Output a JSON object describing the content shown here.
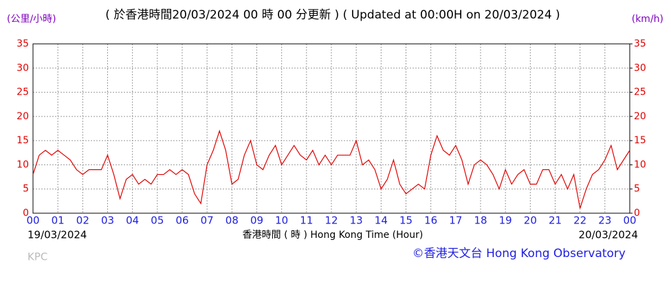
{
  "chart_data": {
    "type": "line",
    "title": "( 於香港時間20/03/2024 00 時 00 分更新 ) ( Updated at 00:00H on 20/03/2024 )",
    "y_label": "(公里/小時)",
    "y2_label": "(km/h)",
    "x_label": "香港時間 ( 時 ) Hong Kong Time (Hour)",
    "start_date": "19/03/2024",
    "end_date": "20/03/2024",
    "station": "KPC",
    "credit": "©香港天文台 Hong Kong Observatory",
    "grid": true,
    "xlim": [
      0,
      24
    ],
    "xticks": [
      {
        "value": 0,
        "label": "00"
      },
      {
        "value": 1,
        "label": "01"
      },
      {
        "value": 2,
        "label": "02"
      },
      {
        "value": 3,
        "label": "03"
      },
      {
        "value": 4,
        "label": "04"
      },
      {
        "value": 5,
        "label": "05"
      },
      {
        "value": 6,
        "label": "06"
      },
      {
        "value": 7,
        "label": "07"
      },
      {
        "value": 8,
        "label": "08"
      },
      {
        "value": 9,
        "label": "09"
      },
      {
        "value": 10,
        "label": "10"
      },
      {
        "value": 11,
        "label": "11"
      },
      {
        "value": 12,
        "label": "12"
      },
      {
        "value": 13,
        "label": "13"
      },
      {
        "value": 14,
        "label": "14"
      },
      {
        "value": 15,
        "label": "15"
      },
      {
        "value": 16,
        "label": "16"
      },
      {
        "value": 17,
        "label": "17"
      },
      {
        "value": 18,
        "label": "18"
      },
      {
        "value": 19,
        "label": "19"
      },
      {
        "value": 20,
        "label": "20"
      },
      {
        "value": 21,
        "label": "21"
      },
      {
        "value": 22,
        "label": "22"
      },
      {
        "value": 23,
        "label": "23"
      },
      {
        "value": 24,
        "label": "00"
      }
    ],
    "ylim": [
      0,
      35
    ],
    "yticks": [
      0,
      5,
      10,
      15,
      20,
      25,
      30,
      35
    ],
    "y2lim": [
      0,
      35
    ],
    "y2ticks": [
      0,
      5,
      10,
      15,
      20,
      25,
      30,
      35
    ],
    "x": [
      0,
      0.25,
      0.5,
      0.75,
      1,
      1.25,
      1.5,
      1.75,
      2,
      2.25,
      2.5,
      2.75,
      3,
      3.25,
      3.5,
      3.75,
      4,
      4.25,
      4.5,
      4.75,
      5,
      5.25,
      5.5,
      5.75,
      6,
      6.25,
      6.5,
      6.75,
      7,
      7.25,
      7.5,
      7.75,
      8,
      8.25,
      8.5,
      8.75,
      9,
      9.25,
      9.5,
      9.75,
      10,
      10.25,
      10.5,
      10.75,
      11,
      11.25,
      11.5,
      11.75,
      12,
      12.25,
      12.5,
      12.75,
      13,
      13.25,
      13.5,
      13.75,
      14,
      14.25,
      14.5,
      14.75,
      15,
      15.25,
      15.5,
      15.75,
      16,
      16.25,
      16.5,
      16.75,
      17,
      17.25,
      17.5,
      17.75,
      18,
      18.25,
      18.5,
      18.75,
      19,
      19.25,
      19.5,
      19.75,
      20,
      20.25,
      20.5,
      20.75,
      21,
      21.25,
      21.5,
      21.75,
      22,
      22.25,
      22.5,
      22.75,
      23,
      23.25,
      23.5,
      23.75,
      24
    ],
    "series": [
      {
        "color": "#e00000",
        "values": [
          8,
          12,
          13,
          12,
          13,
          12,
          11,
          9,
          8,
          9,
          9,
          9,
          12,
          8,
          3,
          7,
          8,
          6,
          7,
          6,
          8,
          8,
          9,
          8,
          9,
          8,
          4,
          2,
          10,
          13,
          17,
          13,
          6,
          7,
          12,
          15,
          10,
          9,
          12,
          14,
          10,
          12,
          14,
          12,
          11,
          13,
          10,
          12,
          10,
          12,
          12,
          12,
          15,
          10,
          11,
          9,
          5,
          7,
          11,
          6,
          4,
          5,
          6,
          5,
          12,
          16,
          13,
          12,
          14,
          11,
          6,
          10,
          11,
          10,
          8,
          5,
          9,
          6,
          8,
          9,
          6,
          6,
          9,
          9,
          6,
          8,
          5,
          8,
          1,
          5,
          8,
          9,
          11,
          14,
          9,
          11,
          13
        ]
      }
    ]
  }
}
